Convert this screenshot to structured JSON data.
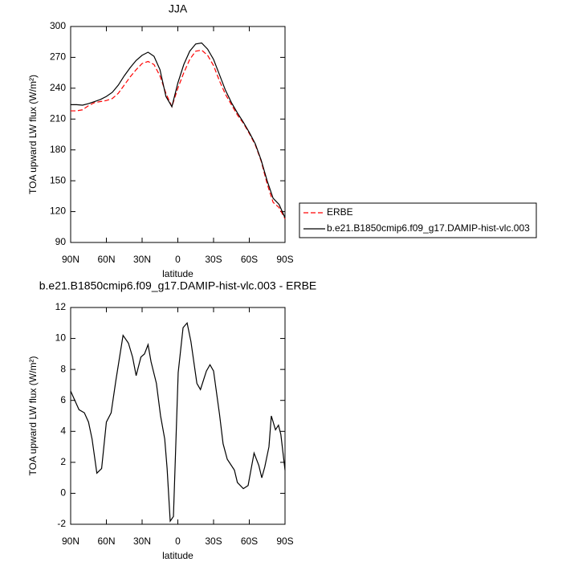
{
  "chart_data": [
    {
      "type": "line",
      "title": "JJA",
      "x": [
        90,
        85,
        80,
        75,
        70,
        65,
        60,
        55,
        50,
        45,
        40,
        35,
        30,
        25,
        20,
        15,
        10,
        5,
        0,
        -5,
        -10,
        -15,
        -20,
        -25,
        -30,
        -35,
        -40,
        -45,
        -50,
        -55,
        -60,
        -65,
        -70,
        -75,
        -80,
        -85,
        -90
      ],
      "series": [
        {
          "name": "ERBE",
          "color": "#ff0000",
          "dash": true,
          "values": [
            218,
            218,
            219,
            223,
            226,
            227,
            228,
            230,
            235,
            243,
            251,
            258,
            264,
            266,
            263,
            252,
            235,
            222,
            240,
            255,
            268,
            276,
            277,
            272,
            262,
            247,
            234,
            224,
            214,
            206,
            196,
            185,
            169,
            147,
            129,
            124,
            113
          ]
        },
        {
          "name": "b.e21.B1850cmip6.f09_g17.DAMIP-hist-vlc.003",
          "color": "#000000",
          "dash": false,
          "values": [
            224,
            224,
            223.5,
            225,
            227,
            229,
            232,
            236,
            243,
            252,
            260,
            267,
            272,
            275,
            271,
            258,
            232,
            222,
            245,
            263,
            276,
            283,
            284,
            278,
            268,
            253,
            238,
            226,
            216,
            207,
            197,
            186,
            170,
            150,
            133,
            127,
            114
          ]
        }
      ],
      "xlim": [
        90,
        -90
      ],
      "xticks": [
        {
          "value": 90,
          "label": "90N"
        },
        {
          "value": 60,
          "label": "60N"
        },
        {
          "value": 30,
          "label": "30N"
        },
        {
          "value": 0,
          "label": "0"
        },
        {
          "value": -30,
          "label": "30S"
        },
        {
          "value": -60,
          "label": "60S"
        },
        {
          "value": -90,
          "label": "90S"
        }
      ],
      "ylim": [
        90,
        300
      ],
      "yticks": [
        90,
        120,
        150,
        180,
        210,
        240,
        270,
        300
      ],
      "xlabel": "latitude",
      "ylabel": "TOA upward LW flux (W/m²)",
      "legend": "right"
    },
    {
      "type": "line",
      "title": "b.e21.B1850cmip6.f09_g17.DAMIP-hist-vlc.003 - ERBE",
      "x": [
        90,
        83,
        78.5,
        75,
        72,
        68,
        64,
        60,
        56,
        52,
        46,
        41.5,
        38,
        35,
        31,
        28,
        25,
        22.5,
        18,
        14.5,
        11,
        9,
        6.4,
        3.7,
        -0.3,
        -4.4,
        -7.8,
        -11,
        -16,
        -19,
        -24,
        -27,
        -30,
        -35,
        -38,
        -41.5,
        -47.5,
        -50,
        -55,
        -59,
        -64,
        -68,
        -70.5,
        -73,
        -76.5,
        -78.5,
        -82,
        -84.5,
        -86.5,
        -90
      ],
      "color": "#000000",
      "values": [
        6.6,
        5.4,
        5.2,
        4.6,
        3.5,
        1.3,
        1.6,
        4.6,
        5.2,
        7.3,
        10.2,
        9.7,
        8.8,
        7.6,
        8.8,
        9.0,
        9.6,
        8.5,
        7.1,
        5.0,
        3.5,
        1.6,
        -1.8,
        -1.5,
        7.8,
        10.7,
        11.0,
        9.8,
        7.1,
        6.7,
        7.9,
        8.3,
        7.9,
        5.1,
        3.2,
        2.2,
        1.5,
        0.7,
        0.3,
        0.5,
        2.6,
        1.8,
        1.0,
        1.7,
        3.0,
        5.0,
        4.1,
        4.4,
        3.8,
        1.5
      ],
      "xlim": [
        90,
        -90
      ],
      "xticks": [
        {
          "value": 90,
          "label": "90N"
        },
        {
          "value": 60,
          "label": "60N"
        },
        {
          "value": 30,
          "label": "30N"
        },
        {
          "value": 0,
          "label": "0"
        },
        {
          "value": -30,
          "label": "30S"
        },
        {
          "value": -60,
          "label": "60S"
        },
        {
          "value": -90,
          "label": "90S"
        }
      ],
      "ylim": [
        -2,
        12
      ],
      "yticks": [
        -2,
        0,
        2,
        4,
        6,
        8,
        10,
        12
      ],
      "xlabel": "latitude",
      "ylabel": "TOA upward LW flux (W/m²)"
    }
  ]
}
